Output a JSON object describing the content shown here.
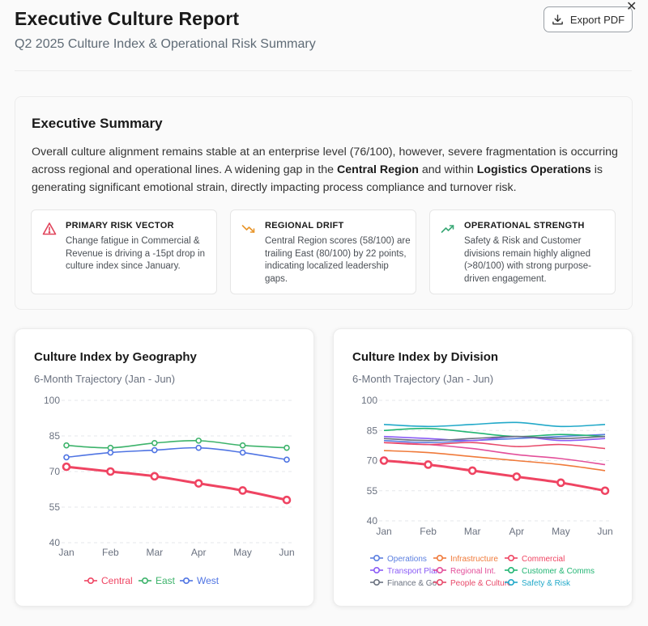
{
  "header": {
    "title": "Executive Culture Report",
    "subtitle": "Q2 2025 Culture Index & Operational Risk Summary",
    "export_label": "Export PDF",
    "close_symbol": "✕"
  },
  "summary": {
    "title": "Executive Summary",
    "text_part1": "Overall culture alignment remains stable at an enterprise level (76/100), however, severe fragmentation is occurring across regional and operational lines. A widening gap in the ",
    "text_bold1": "Central Region",
    "text_part2": " and within ",
    "text_bold2": "Logistics Operations",
    "text_part3": " is generating significant emotional strain, directly impacting process compliance and turnover risk.",
    "insights": [
      {
        "icon": "warning-triangle-icon",
        "title": "PRIMARY RISK VECTOR",
        "text": "Change fatigue in Commercial & Revenue is driving a -15pt drop in culture index since January.",
        "color": "#e0435a"
      },
      {
        "icon": "trend-down-icon",
        "title": "REGIONAL DRIFT",
        "text": "Central Region scores (58/100) are trailing East (80/100) by 22 points, indicating localized leadership gaps.",
        "color": "#e8962c"
      },
      {
        "icon": "trend-up-icon",
        "title": "OPERATIONAL STRENGTH",
        "text": "Safety & Risk and Customer divisions remain highly aligned (>80/100) with strong purpose-driven engagement.",
        "color": "#3aa876"
      }
    ]
  },
  "chart_data": [
    {
      "type": "line",
      "title": "Culture Index by Geography",
      "subtitle": "6-Month Trajectory (Jan - Jun)",
      "x": [
        "Jan",
        "Feb",
        "Mar",
        "Apr",
        "May",
        "Jun"
      ],
      "ylim": [
        40,
        100
      ],
      "yticks": [
        40,
        55,
        70,
        85,
        100
      ],
      "grid": true,
      "legend": "bottom",
      "series": [
        {
          "name": "Central",
          "color": "#ef4462",
          "values": [
            72,
            70,
            68,
            65,
            62,
            58
          ],
          "emphasis": true
        },
        {
          "name": "East",
          "color": "#3db36b",
          "values": [
            81,
            80,
            82,
            83,
            81,
            80
          ]
        },
        {
          "name": "West",
          "color": "#4f74e3",
          "values": [
            76,
            78,
            79,
            80,
            78,
            75
          ]
        }
      ]
    },
    {
      "type": "line",
      "title": "Culture Index by Division",
      "subtitle": "6-Month Trajectory (Jan - Jun)",
      "x": [
        "Jan",
        "Feb",
        "Mar",
        "Apr",
        "May",
        "Jun"
      ],
      "ylim": [
        40,
        100
      ],
      "yticks": [
        40,
        55,
        70,
        85,
        100
      ],
      "grid": true,
      "legend": "bottom",
      "series": [
        {
          "name": "Operations",
          "color": "#5b7fe0",
          "values": [
            80,
            79,
            80,
            81,
            82,
            83
          ]
        },
        {
          "name": "Infrastructure",
          "color": "#f07a3a",
          "values": [
            75,
            74,
            72,
            70,
            68,
            65
          ]
        },
        {
          "name": "Commercial",
          "color": "#ef4462",
          "values": [
            70,
            68,
            65,
            62,
            59,
            55
          ],
          "emphasis": true
        },
        {
          "name": "Transport Plan",
          "color": "#8b5cf6",
          "values": [
            82,
            81,
            80,
            82,
            80,
            81
          ]
        },
        {
          "name": "Regional Int.",
          "color": "#e34f9a",
          "values": [
            79,
            78,
            76,
            73,
            71,
            68
          ]
        },
        {
          "name": "Customer & Comms",
          "color": "#22b573",
          "values": [
            85,
            86,
            84,
            82,
            83,
            82
          ]
        },
        {
          "name": "Finance & Gov",
          "color": "#6b7280",
          "values": [
            81,
            80,
            81,
            82,
            81,
            82
          ]
        },
        {
          "name": "People & Culture",
          "color": "#e84a6a",
          "values": [
            79,
            78,
            79,
            77,
            78,
            76
          ]
        },
        {
          "name": "Safety & Risk",
          "color": "#22a9c9",
          "values": [
            88,
            87,
            88,
            89,
            87,
            88
          ]
        }
      ]
    }
  ]
}
